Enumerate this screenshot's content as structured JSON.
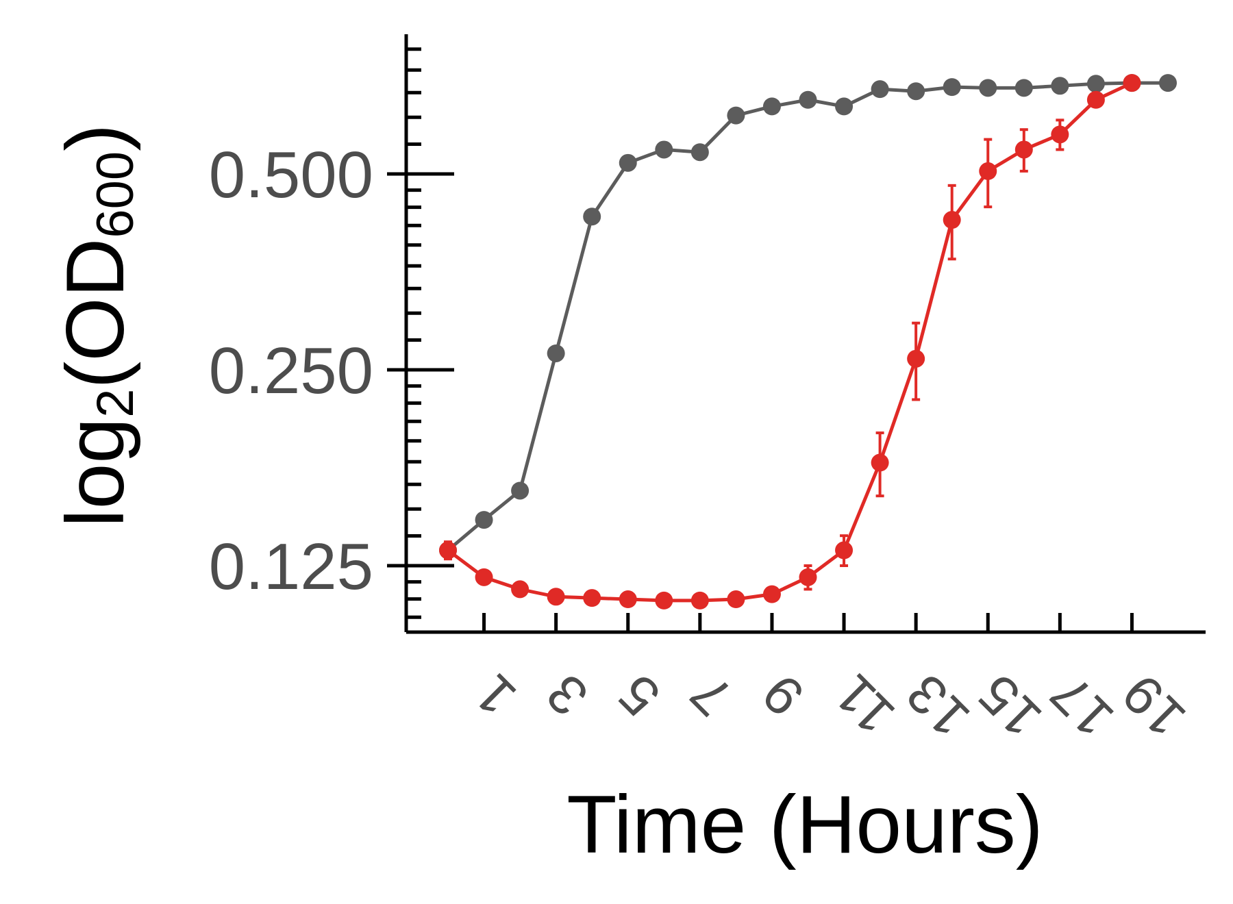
{
  "chart_data": {
    "type": "line",
    "title": "",
    "xlabel": "Time (Hours)",
    "ylabel": {
      "prefix": "log",
      "prefix_sub": "2",
      "open": "(OD",
      "sub": "600",
      "close": ")"
    },
    "y_scale": "log2",
    "ylim": [
      0.1,
      0.78
    ],
    "xlim": [
      -0.5,
      21
    ],
    "x_ticks": [
      1,
      3,
      5,
      7,
      9,
      11,
      13,
      15,
      17,
      19
    ],
    "x_tick_labels": [
      "1",
      "3",
      "5",
      "7",
      "9",
      "11",
      "13",
      "15",
      "17",
      "19"
    ],
    "y_ticks": [
      0.125,
      0.25,
      0.5
    ],
    "y_tick_labels": [
      "0.125",
      "0.250",
      "0.500"
    ],
    "grid": false,
    "legend": "none",
    "series": [
      {
        "color": "#5c5c5c",
        "x": [
          0,
          1,
          2,
          3,
          4,
          5,
          6,
          7,
          8,
          9,
          10,
          11,
          12,
          13,
          14,
          15,
          16,
          17,
          18,
          19,
          20
        ],
        "y": [
          0.132,
          0.147,
          0.163,
          0.265,
          0.43,
          0.52,
          0.545,
          0.54,
          0.615,
          0.635,
          0.65,
          0.635,
          0.675,
          0.67,
          0.68,
          0.678,
          0.678,
          0.683,
          0.688,
          0.69,
          0.69
        ],
        "err": [
          0,
          0,
          0,
          0,
          0,
          0,
          0,
          0.01,
          0,
          0,
          0,
          0,
          0,
          0.01,
          0.01,
          0.01,
          0.01,
          0.008,
          0.01,
          0.01,
          0.012
        ]
      },
      {
        "color": "#e02a26",
        "x": [
          0,
          1,
          2,
          3,
          4,
          5,
          6,
          7,
          8,
          9,
          10,
          11,
          12,
          13,
          14,
          15,
          16,
          17,
          18,
          19
        ],
        "y": [
          0.132,
          0.12,
          0.115,
          0.112,
          0.1115,
          0.111,
          0.1105,
          0.1105,
          0.111,
          0.113,
          0.12,
          0.132,
          0.18,
          0.26,
          0.425,
          0.505,
          0.545,
          0.575,
          0.65,
          0.69
        ],
        "err": [
          0.004,
          0,
          0,
          0,
          0,
          0,
          0,
          0,
          0,
          0,
          0.005,
          0.007,
          0.02,
          0.035,
          0.055,
          0.06,
          0.04,
          0.03,
          0,
          0
        ]
      }
    ]
  }
}
